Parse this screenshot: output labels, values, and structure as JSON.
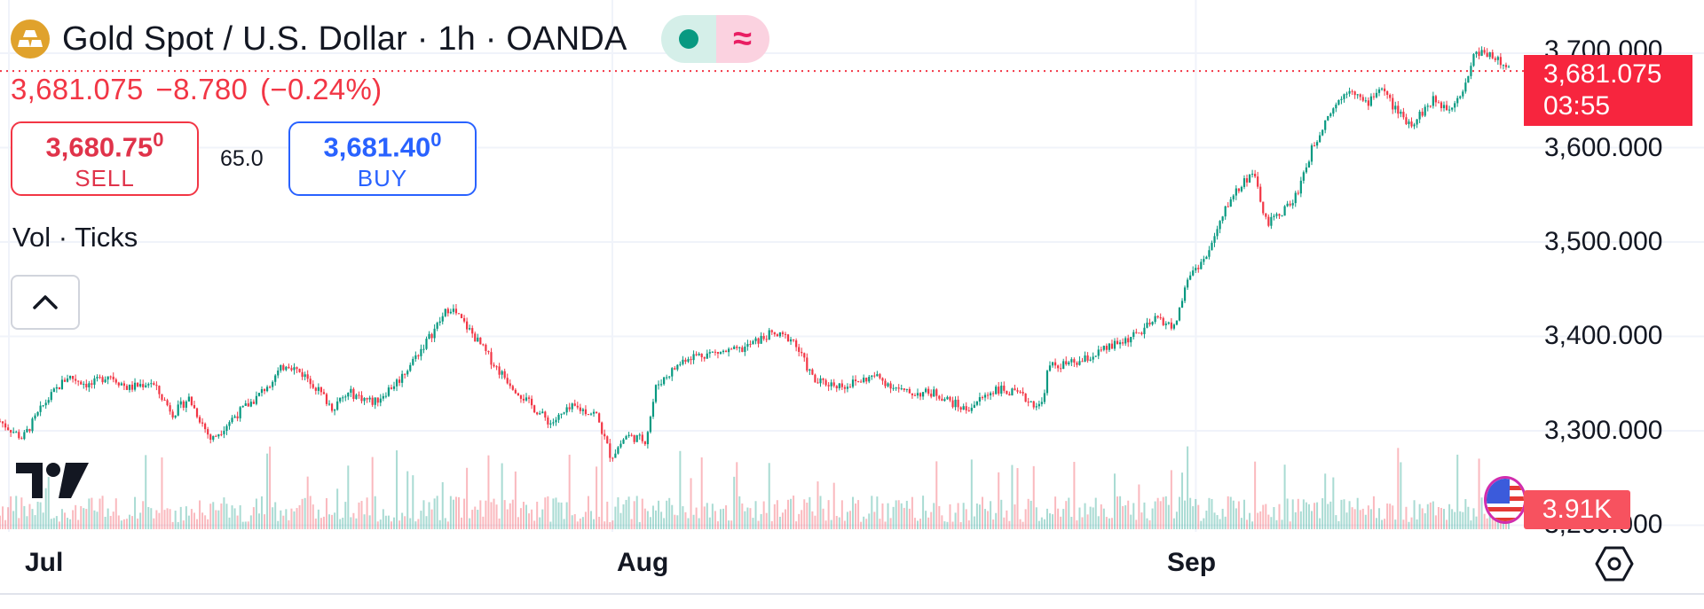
{
  "header": {
    "title": "Gold Spot / U.S. Dollar · 1h · OANDA",
    "wave_glyph": "≈",
    "icons": {
      "symbol": "gold-bars-icon",
      "status": "market-open-dot-icon",
      "wave": "wave-icon"
    }
  },
  "quote": {
    "last": "3,681.075",
    "change": "−8.780",
    "change_pct": "(−0.24%)"
  },
  "trade": {
    "sell_price_main": "3,680.75",
    "sell_price_sup": "0",
    "sell_label": "SELL",
    "buy_price_main": "3,681.40",
    "buy_price_sup": "0",
    "buy_label": "BUY",
    "spread": "65.0"
  },
  "indicator": {
    "label": "Vol · Ticks"
  },
  "price_tag": {
    "price": "3,681.075",
    "countdown": "03:55"
  },
  "volume_tag": {
    "value": "3.91K"
  },
  "colors": {
    "up": "#089981",
    "down": "#f23645",
    "gold": "#e0a22c",
    "buy": "#2962ff",
    "grid": "#f0f3fa",
    "text": "#131722"
  },
  "chart_data": {
    "type": "candlestick",
    "symbol": "XAUUSD",
    "interval": "1h",
    "ylim": [
      3200,
      3720
    ],
    "y_ticks": [
      "3,700.000",
      "3,600.000",
      "3,500.000",
      "3,400.000",
      "3,300.000",
      "3,200.000"
    ],
    "y_tick_values": [
      3700,
      3600,
      3500,
      3400,
      3300,
      3200
    ],
    "x_ticks": [
      "Jul",
      "Aug",
      "Sep"
    ],
    "x_tick_positions": [
      0.0,
      0.4,
      0.7867
    ],
    "price_path": [
      [
        0.0,
        3310
      ],
      [
        0.015,
        3292
      ],
      [
        0.03,
        3330
      ],
      [
        0.045,
        3358
      ],
      [
        0.06,
        3348
      ],
      [
        0.072,
        3360
      ],
      [
        0.085,
        3345
      ],
      [
        0.1,
        3352
      ],
      [
        0.115,
        3318
      ],
      [
        0.125,
        3335
      ],
      [
        0.14,
        3290
      ],
      [
        0.155,
        3315
      ],
      [
        0.17,
        3335
      ],
      [
        0.19,
        3372
      ],
      [
        0.205,
        3355
      ],
      [
        0.22,
        3325
      ],
      [
        0.232,
        3340
      ],
      [
        0.248,
        3330
      ],
      [
        0.265,
        3355
      ],
      [
        0.285,
        3400
      ],
      [
        0.298,
        3432
      ],
      [
        0.312,
        3405
      ],
      [
        0.33,
        3365
      ],
      [
        0.35,
        3330
      ],
      [
        0.365,
        3308
      ],
      [
        0.38,
        3325
      ],
      [
        0.395,
        3318
      ],
      [
        0.405,
        3272
      ],
      [
        0.415,
        3295
      ],
      [
        0.428,
        3290
      ],
      [
        0.435,
        3348
      ],
      [
        0.455,
        3378
      ],
      [
        0.47,
        3382
      ],
      [
        0.49,
        3385
      ],
      [
        0.51,
        3402
      ],
      [
        0.525,
        3398
      ],
      [
        0.54,
        3352
      ],
      [
        0.56,
        3348
      ],
      [
        0.58,
        3358
      ],
      [
        0.6,
        3340
      ],
      [
        0.62,
        3340
      ],
      [
        0.64,
        3322
      ],
      [
        0.66,
        3345
      ],
      [
        0.675,
        3338
      ],
      [
        0.69,
        3325
      ],
      [
        0.695,
        3368
      ],
      [
        0.715,
        3372
      ],
      [
        0.735,
        3388
      ],
      [
        0.755,
        3403
      ],
      [
        0.768,
        3420
      ],
      [
        0.778,
        3408
      ],
      [
        0.788,
        3465
      ],
      [
        0.8,
        3485
      ],
      [
        0.815,
        3545
      ],
      [
        0.83,
        3575
      ],
      [
        0.84,
        3518
      ],
      [
        0.858,
        3545
      ],
      [
        0.87,
        3600
      ],
      [
        0.88,
        3635
      ],
      [
        0.895,
        3665
      ],
      [
        0.905,
        3645
      ],
      [
        0.915,
        3665
      ],
      [
        0.925,
        3640
      ],
      [
        0.935,
        3625
      ],
      [
        0.95,
        3650
      ],
      [
        0.96,
        3642
      ],
      [
        0.97,
        3662
      ],
      [
        0.978,
        3702
      ],
      [
        0.988,
        3700
      ],
      [
        1.0,
        3681
      ]
    ],
    "last_price": 3681.075,
    "volume_last": "3.91K"
  }
}
